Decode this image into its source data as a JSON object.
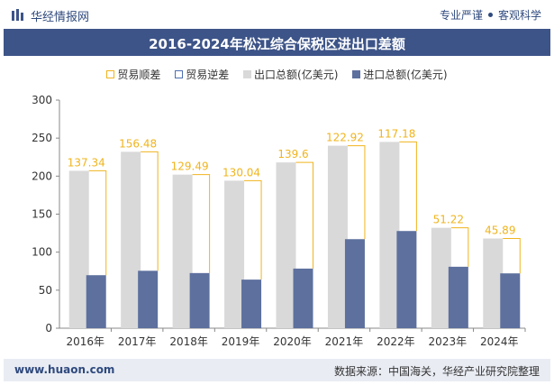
{
  "header": {
    "brand": "华经情报网",
    "slogan_left": "专业严谨",
    "slogan_right": "客观科学"
  },
  "title": "2016-2024年松江综合保税区进出口差额",
  "footer": {
    "website": "www.huaon.com",
    "source": "数据来源：中国海关，华经产业研究院整理"
  },
  "colors": {
    "export": "#d9d9d9",
    "import": "#5d709e",
    "surplus": "#f0b41e",
    "deficit": "#4c6fb0",
    "title_bg": "#3d5488"
  },
  "chart_data": {
    "type": "bar",
    "categories": [
      "2016年",
      "2017年",
      "2018年",
      "2019年",
      "2020年",
      "2021年",
      "2022年",
      "2023年",
      "2024年"
    ],
    "series": [
      {
        "name": "出口总额(亿美元)",
        "values": [
          207,
          232,
          202,
          194,
          218,
          240,
          245,
          132,
          118
        ]
      },
      {
        "name": "进口总额(亿美元)",
        "values": [
          69.7,
          75.5,
          72.5,
          63.9,
          78.4,
          117.1,
          127.8,
          80.8,
          72.1
        ]
      }
    ],
    "balance": {
      "name": "贸易顺差",
      "values": [
        137.34,
        156.48,
        129.49,
        130.04,
        139.6,
        122.92,
        117.18,
        51.22,
        45.89
      ]
    },
    "legend": [
      "贸易顺差",
      "贸易逆差",
      "出口总额(亿美元)",
      "进口总额(亿美元)"
    ],
    "ylim": [
      0,
      300
    ],
    "yticks": [
      0,
      50,
      100,
      150,
      200,
      250,
      300
    ],
    "legend_position": "top",
    "grid": false
  }
}
